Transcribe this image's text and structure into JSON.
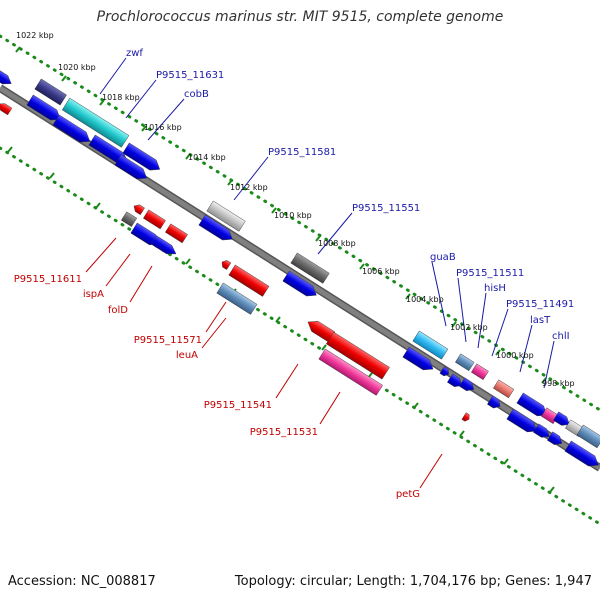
{
  "title": "Prochlorococcus marinus str. MIT 9515, complete genome",
  "footer": {
    "accession": "Accession: NC_008817",
    "summary": "Topology: circular; Length: 1,704,176 bp; Genes: 1,947"
  },
  "ruler_labels": [
    "1022 kbp",
    "1020 kbp",
    "1018 kbp",
    "1016 kbp",
    "1014 kbp",
    "1012 kbp",
    "1010 kbp",
    "1008 kbp",
    "1006 kbp",
    "1004 kbp",
    "1002 kbp",
    "1000 kbp",
    "998 kbp"
  ],
  "forward_gene_labels": [
    "zwf",
    "P9515_11631",
    "cobB",
    "P9515_11581",
    "P9515_11551",
    "guaB",
    "P9515_11511",
    "hisH",
    "P9515_11491",
    "lasT",
    "chlI"
  ],
  "reverse_gene_labels": [
    "P9515_11611",
    "ispA",
    "folD",
    "P9515_11571",
    "leuA",
    "P9515_11541",
    "P9515_11531",
    "petG"
  ],
  "colors": {
    "forward_label": "#1a1aa6",
    "reverse_label": "#c00000",
    "backbone": "#808080",
    "dotted_track": "#1a8a1a",
    "cds_forward": "#0000e6",
    "cds_reverse": "#ee0000"
  }
}
